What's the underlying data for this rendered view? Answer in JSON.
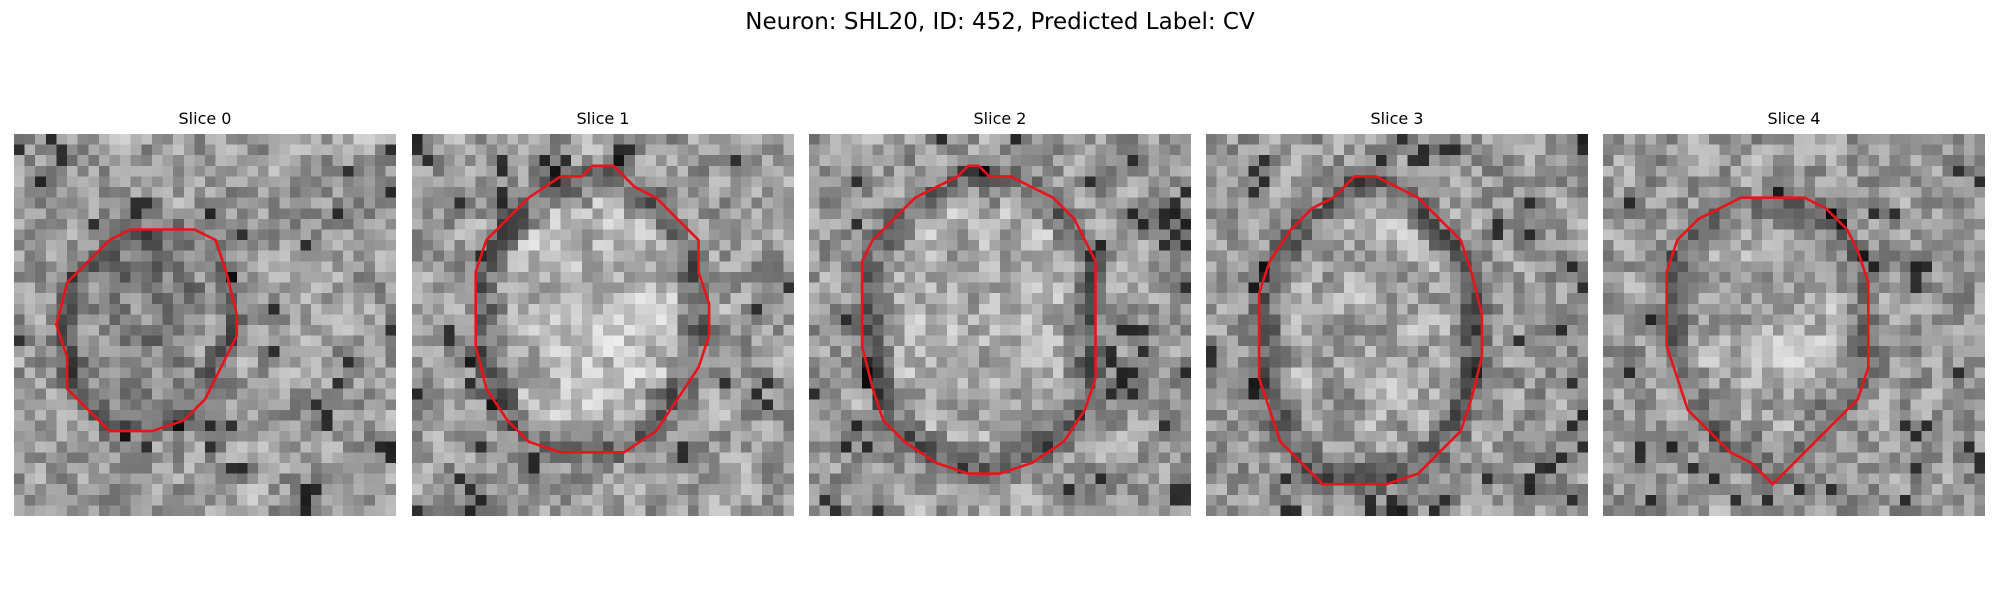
{
  "figure": {
    "title": "Neuron: SHL20, ID: 452, Predicted Label: CV"
  },
  "contour_color": "#e8141c",
  "panels": [
    {
      "title": "Slice 0",
      "seed": 11,
      "dark_rim": 1,
      "center_brightness": -0.6,
      "contour": [
        [
          14,
          9
        ],
        [
          17,
          9
        ],
        [
          19,
          10
        ],
        [
          20,
          13
        ],
        [
          21,
          17
        ],
        [
          21,
          19
        ],
        [
          20,
          21
        ],
        [
          18,
          25
        ],
        [
          16,
          27
        ],
        [
          13,
          28
        ],
        [
          9,
          28
        ],
        [
          7,
          26
        ],
        [
          5,
          24
        ],
        [
          5,
          21
        ],
        [
          4,
          18
        ],
        [
          5,
          14
        ],
        [
          7,
          12
        ],
        [
          9,
          10
        ],
        [
          11,
          9
        ]
      ]
    },
    {
      "title": "Slice 1",
      "seed": 23,
      "dark_rim": 1,
      "center_brightness": 1,
      "contour": [
        [
          17,
          3
        ],
        [
          19,
          3
        ],
        [
          21,
          5
        ],
        [
          23,
          6
        ],
        [
          25,
          8
        ],
        [
          27,
          10
        ],
        [
          27,
          13
        ],
        [
          28,
          16
        ],
        [
          28,
          19
        ],
        [
          27,
          22
        ],
        [
          25,
          25
        ],
        [
          23,
          28
        ],
        [
          20,
          30
        ],
        [
          17,
          30
        ],
        [
          14,
          30
        ],
        [
          11,
          29
        ],
        [
          9,
          27
        ],
        [
          7,
          24
        ],
        [
          6,
          20
        ],
        [
          6,
          16
        ],
        [
          6,
          13
        ],
        [
          7,
          10
        ],
        [
          9,
          8
        ],
        [
          11,
          6
        ],
        [
          14,
          4
        ],
        [
          16,
          4
        ]
      ]
    },
    {
      "title": "Slice 2",
      "seed": 37,
      "dark_rim": 1,
      "center_brightness": 0.7,
      "contour": [
        [
          15,
          3
        ],
        [
          16,
          3
        ],
        [
          17,
          4
        ],
        [
          19,
          4
        ],
        [
          21,
          5
        ],
        [
          23,
          6
        ],
        [
          25,
          8
        ],
        [
          26,
          10
        ],
        [
          27,
          12
        ],
        [
          27,
          16
        ],
        [
          27,
          20
        ],
        [
          27,
          23
        ],
        [
          26,
          26
        ],
        [
          24,
          29
        ],
        [
          21,
          31
        ],
        [
          18,
          32
        ],
        [
          15,
          32
        ],
        [
          12,
          31
        ],
        [
          9,
          29
        ],
        [
          7,
          27
        ],
        [
          6,
          24
        ],
        [
          5,
          20
        ],
        [
          5,
          16
        ],
        [
          5,
          12
        ],
        [
          6,
          10
        ],
        [
          8,
          8
        ],
        [
          10,
          6
        ],
        [
          12,
          5
        ],
        [
          14,
          4
        ]
      ]
    },
    {
      "title": "Slice 3",
      "seed": 53,
      "dark_rim": 1,
      "center_brightness": 0.4,
      "contour": [
        [
          14,
          4
        ],
        [
          16,
          4
        ],
        [
          18,
          5
        ],
        [
          20,
          6
        ],
        [
          22,
          8
        ],
        [
          24,
          10
        ],
        [
          25,
          13
        ],
        [
          26,
          17
        ],
        [
          26,
          21
        ],
        [
          25,
          25
        ],
        [
          24,
          28
        ],
        [
          22,
          30
        ],
        [
          20,
          32
        ],
        [
          17,
          33
        ],
        [
          14,
          33
        ],
        [
          11,
          33
        ],
        [
          9,
          31
        ],
        [
          7,
          29
        ],
        [
          6,
          26
        ],
        [
          5,
          23
        ],
        [
          5,
          19
        ],
        [
          5,
          15
        ],
        [
          6,
          12
        ],
        [
          8,
          9
        ],
        [
          10,
          7
        ],
        [
          12,
          6
        ]
      ]
    },
    {
      "title": "Slice 4",
      "seed": 71,
      "dark_rim": 0.7,
      "center_brightness": 0.6,
      "contour": [
        [
          13,
          6
        ],
        [
          16,
          6
        ],
        [
          19,
          6
        ],
        [
          21,
          7
        ],
        [
          23,
          9
        ],
        [
          24,
          11
        ],
        [
          25,
          14
        ],
        [
          25,
          18
        ],
        [
          25,
          22
        ],
        [
          24,
          25
        ],
        [
          22,
          27
        ],
        [
          20,
          29
        ],
        [
          18,
          31
        ],
        [
          17,
          32
        ],
        [
          16,
          33
        ],
        [
          15,
          32
        ],
        [
          14,
          31
        ],
        [
          12,
          30
        ],
        [
          10,
          28
        ],
        [
          8,
          26
        ],
        [
          7,
          23
        ],
        [
          6,
          20
        ],
        [
          6,
          16
        ],
        [
          6,
          13
        ],
        [
          7,
          10
        ],
        [
          9,
          8
        ],
        [
          11,
          7
        ]
      ]
    }
  ]
}
